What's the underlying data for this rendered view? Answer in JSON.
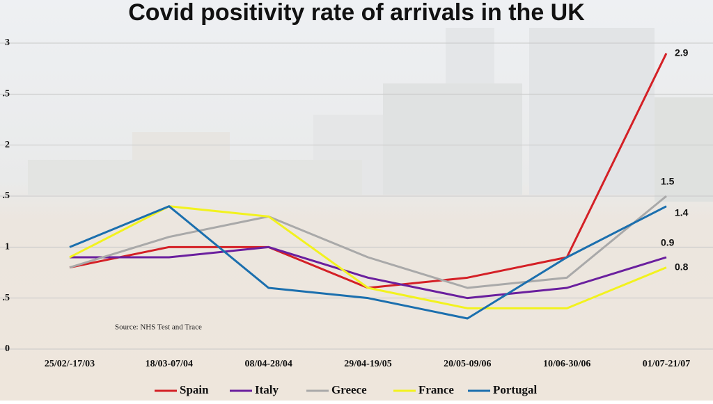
{
  "chart_data": {
    "type": "line",
    "title": "Covid positivity rate of arrivals in the UK",
    "annotation": "Source: NHS Test and Trace",
    "categories": [
      "25/02/-17/03",
      "18/03-07/04",
      "08/04-28/04",
      "29/04-19/05",
      "20/05-09/06",
      "10/06-30/06",
      "01/07-21/07"
    ],
    "series": [
      {
        "name": "Spain",
        "color": "#d42026",
        "values": [
          0.8,
          1.0,
          1.0,
          0.6,
          0.7,
          0.9,
          2.9
        ]
      },
      {
        "name": "Italy",
        "color": "#6a1f9e",
        "values": [
          0.9,
          0.9,
          1.0,
          0.7,
          0.5,
          0.6,
          0.9
        ]
      },
      {
        "name": "Greece",
        "color": "#a9a9a9",
        "values": [
          0.8,
          1.1,
          1.3,
          0.9,
          0.6,
          0.7,
          1.5
        ]
      },
      {
        "name": "France",
        "color": "#f2f21e",
        "values": [
          0.9,
          1.4,
          1.3,
          0.6,
          0.4,
          0.4,
          0.8
        ]
      },
      {
        "name": "Portugal",
        "color": "#1b6fae",
        "values": [
          1.0,
          1.4,
          0.6,
          0.5,
          0.3,
          0.9,
          1.4
        ]
      }
    ],
    "ylim": [
      0,
      3
    ],
    "yticks": [
      0,
      {
        "value": 0.5,
        "label": ".5"
      },
      1,
      {
        "value": 1.5,
        "label": ".5"
      },
      2,
      {
        "value": 2.5,
        "label": ".5"
      },
      3
    ],
    "grid": true,
    "legend": "bottom"
  }
}
